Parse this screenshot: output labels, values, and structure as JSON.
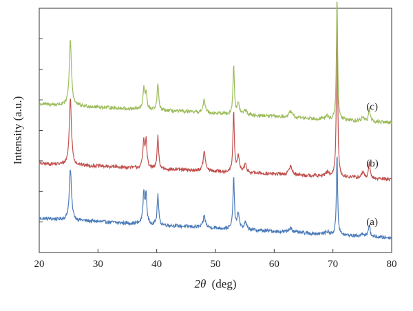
{
  "chart_data": {
    "type": "line",
    "title": "",
    "xlabel_var": "2θ",
    "xlabel_unit": "(deg)",
    "ylabel": "Intensity (a.u.)",
    "xlim": [
      20,
      80
    ],
    "xticks": [
      "20",
      "30",
      "40",
      "50",
      "60",
      "70",
      "80"
    ],
    "yticks_labeled": false,
    "grid": false,
    "peaks": [
      {
        "x": 25.3,
        "w": 0.22
      },
      {
        "x": 37.8,
        "w": 0.18
      },
      {
        "x": 38.2,
        "w": 0.15
      },
      {
        "x": 40.2,
        "w": 0.15
      },
      {
        "x": 48.1,
        "w": 0.22
      },
      {
        "x": 53.1,
        "w": 0.14
      },
      {
        "x": 53.9,
        "w": 0.22
      },
      {
        "x": 55.1,
        "w": 0.25
      },
      {
        "x": 62.8,
        "w": 0.3
      },
      {
        "x": 69.0,
        "w": 0.3
      },
      {
        "x": 70.7,
        "w": 0.12
      },
      {
        "x": 75.1,
        "w": 0.25
      },
      {
        "x": 76.2,
        "w": 0.15
      }
    ],
    "series": [
      {
        "label": "(a)",
        "color": "#4a7ab8",
        "baseline": [
          3.5,
          1.5
        ],
        "heights": [
          5.2,
          3.1,
          3.0,
          3.1,
          1.2,
          5.3,
          1.6,
          0.7,
          0.5,
          0.3,
          8.5,
          0.3,
          1.3
        ]
      },
      {
        "label": "(b)",
        "color": "#c0504d",
        "baseline": [
          9.1,
          7.5
        ],
        "heights": [
          6.8,
          2.7,
          2.9,
          3.3,
          2.0,
          6.2,
          1.6,
          0.8,
          0.9,
          0.4,
          17.5,
          0.6,
          1.6
        ]
      },
      {
        "label": "(c)",
        "color": "#9bbb59",
        "baseline": [
          15.2,
          13.3
        ],
        "heights": [
          6.8,
          2.1,
          1.8,
          2.8,
          1.3,
          5.0,
          1.1,
          0.5,
          0.6,
          0.3,
          12.8,
          0.4,
          1.4
        ]
      }
    ],
    "ylim": [
      0,
      25
    ]
  }
}
